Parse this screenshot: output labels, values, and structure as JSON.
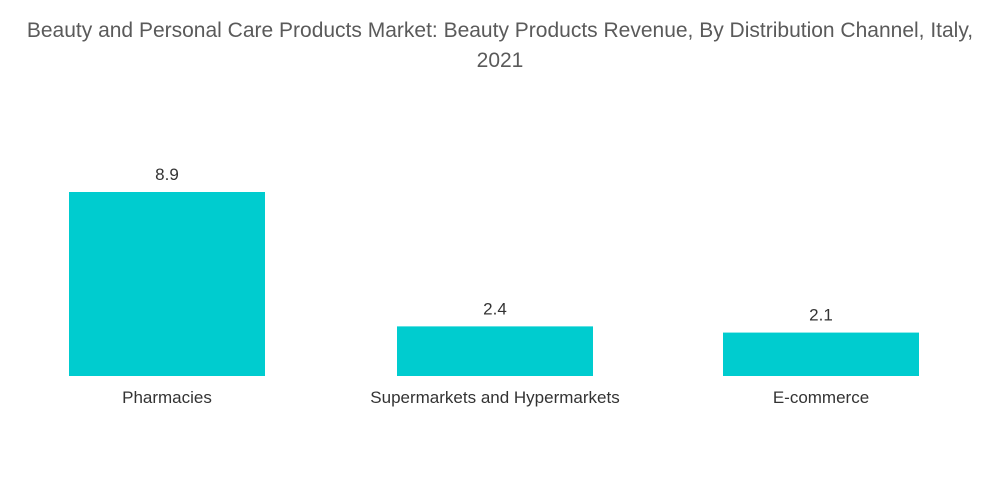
{
  "chart_data": {
    "type": "bar",
    "title": "Beauty and Personal Care Products Market: Beauty Products Revenue, By Distribution Channel, Italy, 2021",
    "categories": [
      "Pharmacies",
      "Supermarkets and Hypermarkets",
      "E-commerce"
    ],
    "values": [
      8.9,
      2.4,
      2.1
    ],
    "value_labels": [
      "8.9",
      "2.4",
      "2.1"
    ],
    "xlabel": "",
    "ylabel": "",
    "ylim": [
      0,
      8.9
    ],
    "grid": false,
    "legend": "none",
    "bar_color": "#00CCCF"
  }
}
